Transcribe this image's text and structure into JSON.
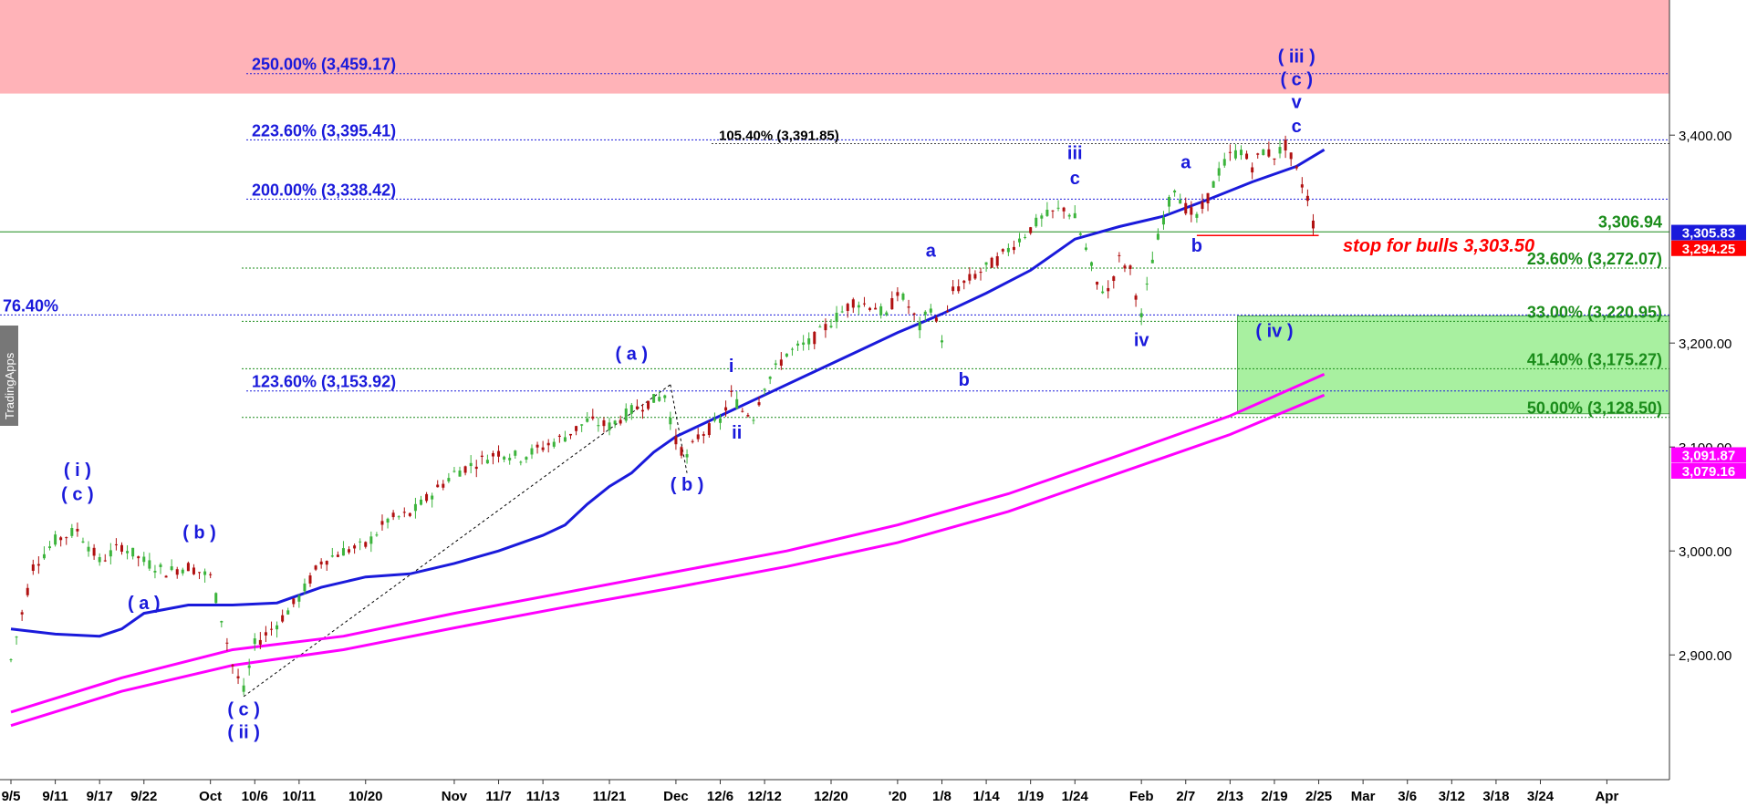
{
  "chart_data": {
    "type": "line",
    "title": "",
    "watermark": "TradingApps",
    "ylim": [
      2780,
      3530
    ],
    "yticks": [
      {
        "v": 2900,
        "t": "2,900.00"
      },
      {
        "v": 3000,
        "t": "3,000.00"
      },
      {
        "v": 3100,
        "t": "3,100.00"
      },
      {
        "v": 3200,
        "t": "3,200.00"
      },
      {
        "v": 3400,
        "t": "3,400.00"
      }
    ],
    "xticks": [
      {
        "i": 0,
        "t": "9/5"
      },
      {
        "i": 4,
        "t": "9/11"
      },
      {
        "i": 8,
        "t": "9/17"
      },
      {
        "i": 12,
        "t": "9/22"
      },
      {
        "i": 18,
        "t": "Oct"
      },
      {
        "i": 22,
        "t": "10/6"
      },
      {
        "i": 26,
        "t": "10/11"
      },
      {
        "i": 32,
        "t": "10/20"
      },
      {
        "i": 40,
        "t": "Nov"
      },
      {
        "i": 44,
        "t": "11/7"
      },
      {
        "i": 48,
        "t": "11/13"
      },
      {
        "i": 54,
        "t": "11/21"
      },
      {
        "i": 60,
        "t": "Dec"
      },
      {
        "i": 64,
        "t": "12/6"
      },
      {
        "i": 68,
        "t": "12/12"
      },
      {
        "i": 74,
        "t": "12/20"
      },
      {
        "i": 80,
        "t": "'20"
      },
      {
        "i": 84,
        "t": "1/8"
      },
      {
        "i": 88,
        "t": "1/14"
      },
      {
        "i": 92,
        "t": "1/19"
      },
      {
        "i": 96,
        "t": "1/24"
      },
      {
        "i": 102,
        "t": "Feb"
      },
      {
        "i": 106,
        "t": "2/7"
      },
      {
        "i": 110,
        "t": "2/13"
      },
      {
        "i": 114,
        "t": "2/19"
      },
      {
        "i": 118,
        "t": "2/25"
      },
      {
        "i": 122,
        "t": "Mar"
      },
      {
        "i": 126,
        "t": "3/6"
      },
      {
        "i": 130,
        "t": "3/12"
      },
      {
        "i": 134,
        "t": "3/18"
      },
      {
        "i": 138,
        "t": "3/24"
      },
      {
        "i": 144,
        "t": "Apr"
      }
    ],
    "x_total": 148,
    "price_anchors": [
      [
        0,
        2895
      ],
      [
        2,
        2985
      ],
      [
        4,
        3010
      ],
      [
        6,
        3020
      ],
      [
        8,
        2990
      ],
      [
        10,
        3005
      ],
      [
        12,
        2990
      ],
      [
        14,
        2980
      ],
      [
        16,
        2985
      ],
      [
        18,
        2975
      ],
      [
        19,
        2935
      ],
      [
        20,
        2890
      ],
      [
        21,
        2865
      ],
      [
        22,
        2910
      ],
      [
        24,
        2930
      ],
      [
        26,
        2955
      ],
      [
        28,
        2990
      ],
      [
        30,
        3000
      ],
      [
        32,
        3005
      ],
      [
        34,
        3030
      ],
      [
        36,
        3035
      ],
      [
        38,
        3055
      ],
      [
        40,
        3075
      ],
      [
        42,
        3085
      ],
      [
        44,
        3095
      ],
      [
        46,
        3090
      ],
      [
        48,
        3100
      ],
      [
        50,
        3110
      ],
      [
        52,
        3125
      ],
      [
        54,
        3120
      ],
      [
        56,
        3135
      ],
      [
        58,
        3145
      ],
      [
        59,
        3150
      ],
      [
        60,
        3105
      ],
      [
        61,
        3090
      ],
      [
        62,
        3110
      ],
      [
        64,
        3125
      ],
      [
        65,
        3150
      ],
      [
        66,
        3135
      ],
      [
        67,
        3130
      ],
      [
        68,
        3160
      ],
      [
        70,
        3190
      ],
      [
        72,
        3200
      ],
      [
        74,
        3220
      ],
      [
        76,
        3240
      ],
      [
        78,
        3235
      ],
      [
        79,
        3225
      ],
      [
        80,
        3250
      ],
      [
        81,
        3235
      ],
      [
        82,
        3215
      ],
      [
        83,
        3235
      ],
      [
        84,
        3205
      ],
      [
        85,
        3250
      ],
      [
        87,
        3265
      ],
      [
        89,
        3280
      ],
      [
        91,
        3300
      ],
      [
        93,
        3320
      ],
      [
        95,
        3330
      ],
      [
        96,
        3320
      ],
      [
        97,
        3290
      ],
      [
        98,
        3255
      ],
      [
        99,
        3250
      ],
      [
        100,
        3280
      ],
      [
        101,
        3270
      ],
      [
        102,
        3225
      ],
      [
        103,
        3280
      ],
      [
        104,
        3320
      ],
      [
        105,
        3350
      ],
      [
        106,
        3330
      ],
      [
        107,
        3320
      ],
      [
        108,
        3340
      ],
      [
        109,
        3365
      ],
      [
        110,
        3380
      ],
      [
        111,
        3385
      ],
      [
        112,
        3370
      ],
      [
        113,
        3385
      ],
      [
        114,
        3380
      ],
      [
        115,
        3390
      ],
      [
        116,
        3365
      ],
      [
        117,
        3340
      ],
      [
        117.5,
        3315
      ]
    ],
    "series": [
      {
        "color": "#1a1adb",
        "points": [
          [
            0,
            2925
          ],
          [
            4,
            2920
          ],
          [
            8,
            2918
          ],
          [
            10,
            2925
          ],
          [
            12,
            2940
          ],
          [
            16,
            2948
          ],
          [
            20,
            2948
          ],
          [
            24,
            2950
          ],
          [
            28,
            2965
          ],
          [
            32,
            2975
          ],
          [
            36,
            2978
          ],
          [
            40,
            2988
          ],
          [
            44,
            3000
          ],
          [
            48,
            3015
          ],
          [
            50,
            3025
          ],
          [
            52,
            3045
          ],
          [
            54,
            3062
          ],
          [
            56,
            3075
          ],
          [
            58,
            3095
          ],
          [
            60,
            3110
          ],
          [
            64,
            3130
          ],
          [
            68,
            3150
          ],
          [
            72,
            3170
          ],
          [
            76,
            3190
          ],
          [
            80,
            3210
          ],
          [
            84,
            3228
          ],
          [
            88,
            3248
          ],
          [
            92,
            3270
          ],
          [
            96,
            3300
          ],
          [
            100,
            3312
          ],
          [
            104,
            3322
          ],
          [
            108,
            3338
          ],
          [
            112,
            3355
          ],
          [
            116,
            3370
          ],
          [
            118.5,
            3386
          ]
        ]
      },
      {
        "color": "#ff00ff",
        "points": [
          [
            0,
            2845
          ],
          [
            10,
            2878
          ],
          [
            20,
            2905
          ],
          [
            30,
            2918
          ],
          [
            40,
            2940
          ],
          [
            50,
            2960
          ],
          [
            60,
            2980
          ],
          [
            70,
            3000
          ],
          [
            80,
            3025
          ],
          [
            90,
            3055
          ],
          [
            100,
            3092
          ],
          [
            110,
            3130
          ],
          [
            118.5,
            3170
          ]
        ]
      },
      {
        "color": "#ff00ff",
        "points": [
          [
            0,
            2832
          ],
          [
            10,
            2865
          ],
          [
            20,
            2890
          ],
          [
            30,
            2905
          ],
          [
            40,
            2926
          ],
          [
            50,
            2946
          ],
          [
            60,
            2965
          ],
          [
            70,
            2985
          ],
          [
            80,
            3008
          ],
          [
            90,
            3038
          ],
          [
            100,
            3075
          ],
          [
            110,
            3112
          ],
          [
            118.5,
            3150
          ]
        ]
      }
    ],
    "fib_levels": [
      {
        "v": 3459.17,
        "t": "250.00% (3,459.17)",
        "color": "#1a1adb",
        "side": "left"
      },
      {
        "v": 3395.41,
        "t": "223.60% (3,395.41)",
        "color": "#1a1adb",
        "side": "left"
      },
      {
        "v": 3338.42,
        "t": "200.00% (3,338.42)",
        "color": "#1a1adb",
        "side": "left"
      },
      {
        "v": 3153.92,
        "t": "123.60% (3,153.92)",
        "color": "#1a1adb",
        "side": "left"
      },
      {
        "v": 3227,
        "t": "76.40%",
        "color": "#1a1adb",
        "side": "far-left"
      },
      {
        "v": 3391.85,
        "t": "105.40% (3,391.85)",
        "color": "#000000",
        "side": "mid"
      },
      {
        "v": 3272.07,
        "t": "23.60% (3,272.07)",
        "color": "#1a8c1a",
        "side": "right"
      },
      {
        "v": 3220.95,
        "t": "33.00% (3,220.95)",
        "color": "#1a8c1a",
        "side": "right"
      },
      {
        "v": 3175.27,
        "t": "41.40% (3,175.27)",
        "color": "#1a8c1a",
        "side": "right"
      },
      {
        "v": 3128.5,
        "t": "50.00% (3,128.50)",
        "color": "#1a8c1a",
        "side": "right"
      }
    ],
    "horizontal_line": {
      "v": 3306.94,
      "t": "3,306.94",
      "color": "#1a8c1a"
    },
    "stop_line": {
      "v": 3303.5,
      "t": "stop for bulls 3,303.50",
      "color": "#ff0000"
    },
    "price_tags": [
      {
        "v": 3305.83,
        "t": "3,305.83",
        "bg": "#1a1adb"
      },
      {
        "v": 3294.25,
        "t": "3,294.25",
        "bg": "#ff0000"
      },
      {
        "v": 3091.87,
        "t": "3,091.87",
        "bg": "#ff00ff"
      },
      {
        "v": 3079.16,
        "t": "3,079.16",
        "bg": "#ff00ff"
      }
    ],
    "zones": [
      {
        "v_top": 3530,
        "v_bot": 3440,
        "color": "#ffb3b8"
      },
      {
        "v_top": 3226,
        "v_bot": 3132,
        "color": "#a8f0a0",
        "x_from": 111
      }
    ],
    "wave_labels": [
      {
        "i": 6,
        "v": 3072,
        "t": "( i )"
      },
      {
        "i": 6,
        "v": 3049,
        "t": "( c )"
      },
      {
        "i": 17,
        "v": 3012,
        "t": "( b )"
      },
      {
        "i": 12,
        "v": 2944,
        "t": "( a )"
      },
      {
        "i": 21,
        "v": 2842,
        "t": "( c )"
      },
      {
        "i": 21,
        "v": 2820,
        "t": "( ii )"
      },
      {
        "i": 56,
        "v": 3184,
        "t": "( a )"
      },
      {
        "i": 61,
        "v": 3058,
        "t": "( b )"
      },
      {
        "i": 65,
        "v": 3172,
        "t": "i"
      },
      {
        "i": 65.5,
        "v": 3108,
        "t": "ii"
      },
      {
        "i": 83,
        "v": 3283,
        "t": "a"
      },
      {
        "i": 86,
        "v": 3159,
        "t": "b"
      },
      {
        "i": 96,
        "v": 3377,
        "t": "iii"
      },
      {
        "i": 96,
        "v": 3353,
        "t": "c"
      },
      {
        "i": 102,
        "v": 3197,
        "t": "iv"
      },
      {
        "i": 106,
        "v": 3368,
        "t": "a"
      },
      {
        "i": 107,
        "v": 3288,
        "t": "b"
      },
      {
        "i": 116,
        "v": 3470,
        "t": "( iii )"
      },
      {
        "i": 116,
        "v": 3448,
        "t": "( c )"
      },
      {
        "i": 116,
        "v": 3426,
        "t": "v"
      },
      {
        "i": 116,
        "v": 3403,
        "t": "c"
      },
      {
        "i": 114,
        "v": 3206,
        "t": "( iv )"
      }
    ]
  }
}
